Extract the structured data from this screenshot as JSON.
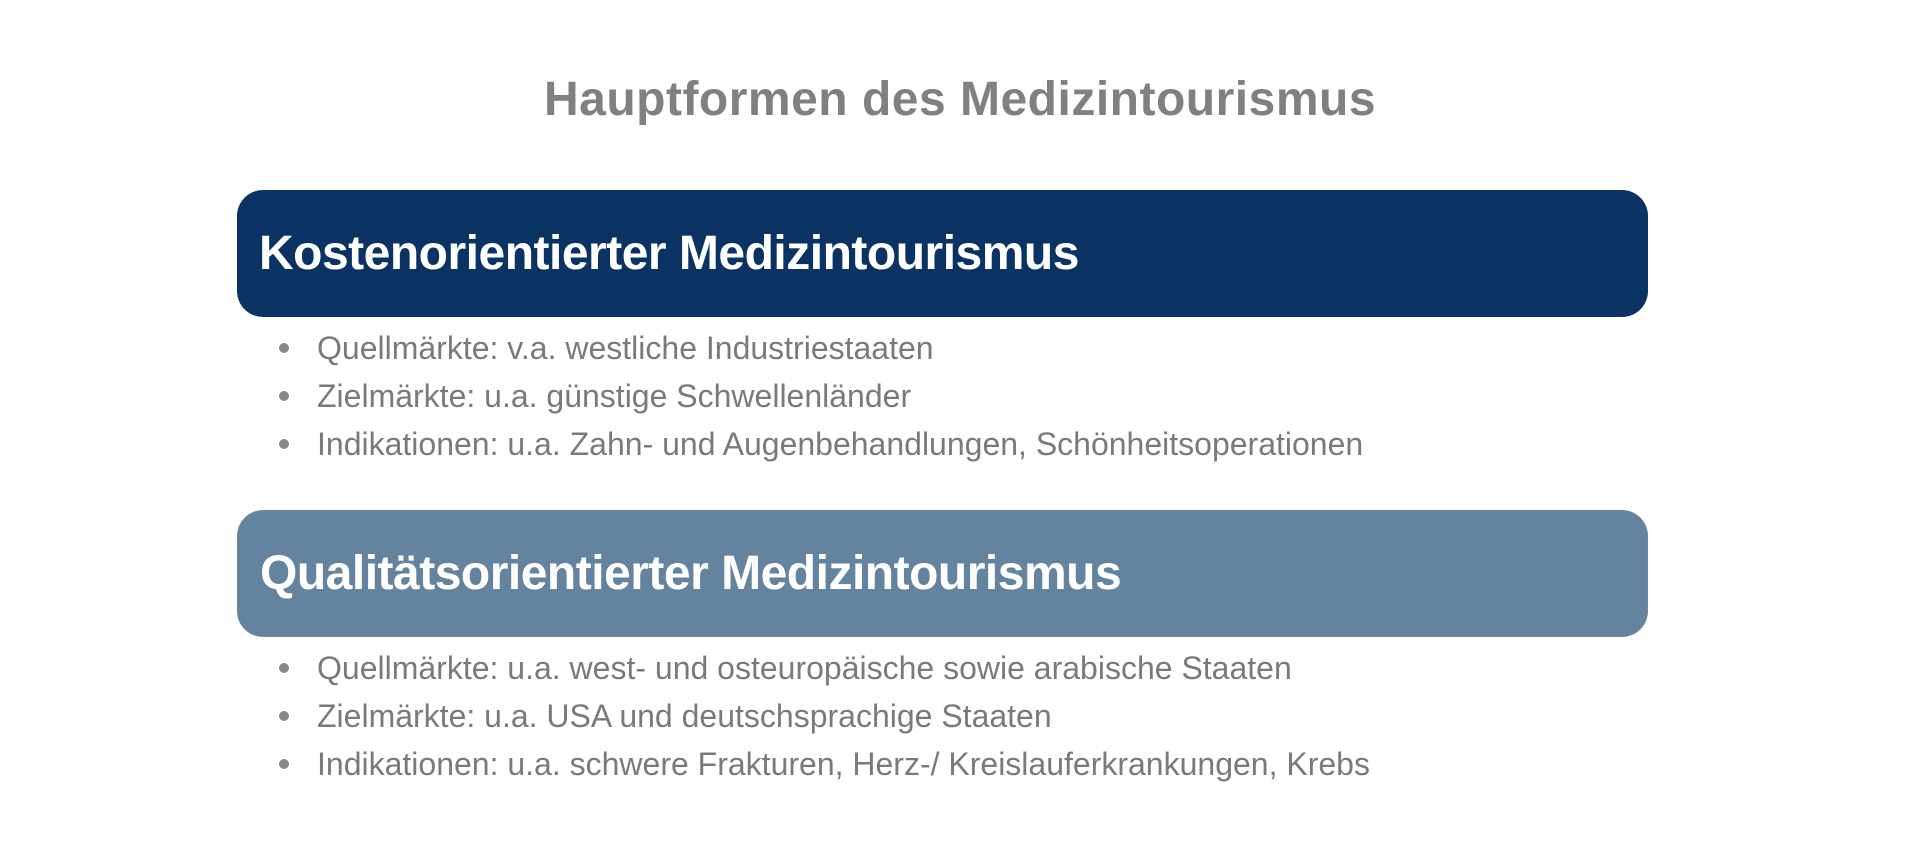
{
  "slide": {
    "title": "Hauptformen des Medizintourismus",
    "colors": {
      "banner_dark": "#0a3363",
      "banner_light": "#64839e",
      "title_gray": "#808080",
      "bullet_gray": "#7a7a7a",
      "heading_text": "#ffffff"
    },
    "sections": [
      {
        "heading": "Kostenorientierter Medizintourismus",
        "bullets": [
          "Quellmärkte: v.a. westliche Industriestaaten",
          "Zielmärkte: u.a. günstige Schwellenländer",
          "Indikationen: u.a. Zahn- und Augenbehandlungen, Schönheitsoperationen"
        ]
      },
      {
        "heading": "Qualitätsorientierter Medizintourismus",
        "bullets": [
          "Quellmärkte: u.a. west- und osteuropäische sowie arabische Staaten",
          "Zielmärkte: u.a. USA und deutschsprachige Staaten",
          "Indikationen: u.a. schwere Frakturen, Herz-/ Kreislauferkrankungen, Krebs"
        ]
      }
    ]
  }
}
